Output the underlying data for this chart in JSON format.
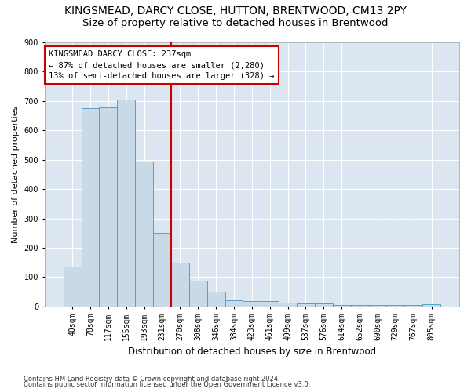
{
  "title": "KINGSMEAD, DARCY CLOSE, HUTTON, BRENTWOOD, CM13 2PY",
  "subtitle": "Size of property relative to detached houses in Brentwood",
  "xlabel": "Distribution of detached houses by size in Brentwood",
  "ylabel": "Number of detached properties",
  "footnote1": "Contains HM Land Registry data © Crown copyright and database right 2024.",
  "footnote2": "Contains public sector information licensed under the Open Government Licence v3.0.",
  "bar_labels": [
    "40sqm",
    "78sqm",
    "117sqm",
    "155sqm",
    "193sqm",
    "231sqm",
    "270sqm",
    "308sqm",
    "346sqm",
    "384sqm",
    "423sqm",
    "461sqm",
    "499sqm",
    "537sqm",
    "576sqm",
    "614sqm",
    "652sqm",
    "690sqm",
    "729sqm",
    "767sqm",
    "805sqm"
  ],
  "bar_values": [
    135,
    675,
    678,
    705,
    493,
    250,
    148,
    87,
    50,
    22,
    18,
    18,
    12,
    10,
    10,
    5,
    5,
    5,
    5,
    5,
    8
  ],
  "bar_color": "#c8d9e8",
  "bar_edge_color": "#5a9ec8",
  "background_color": "#dce6f0",
  "fig_background_color": "#ffffff",
  "grid_color": "#ffffff",
  "annotation_text": "KINGSMEAD DARCY CLOSE: 237sqm\n← 87% of detached houses are smaller (2,280)\n13% of semi-detached houses are larger (328) →",
  "vline_x_index": 5.5,
  "annotation_box_color": "#ffffff",
  "annotation_box_edge": "#cc0000",
  "vline_color": "#cc0000",
  "ylim": [
    0,
    900
  ],
  "yticks": [
    0,
    100,
    200,
    300,
    400,
    500,
    600,
    700,
    800,
    900
  ],
  "title_fontsize": 10,
  "subtitle_fontsize": 9.5,
  "xlabel_fontsize": 8.5,
  "ylabel_fontsize": 8,
  "tick_fontsize": 7,
  "annotation_fontsize": 7.5
}
